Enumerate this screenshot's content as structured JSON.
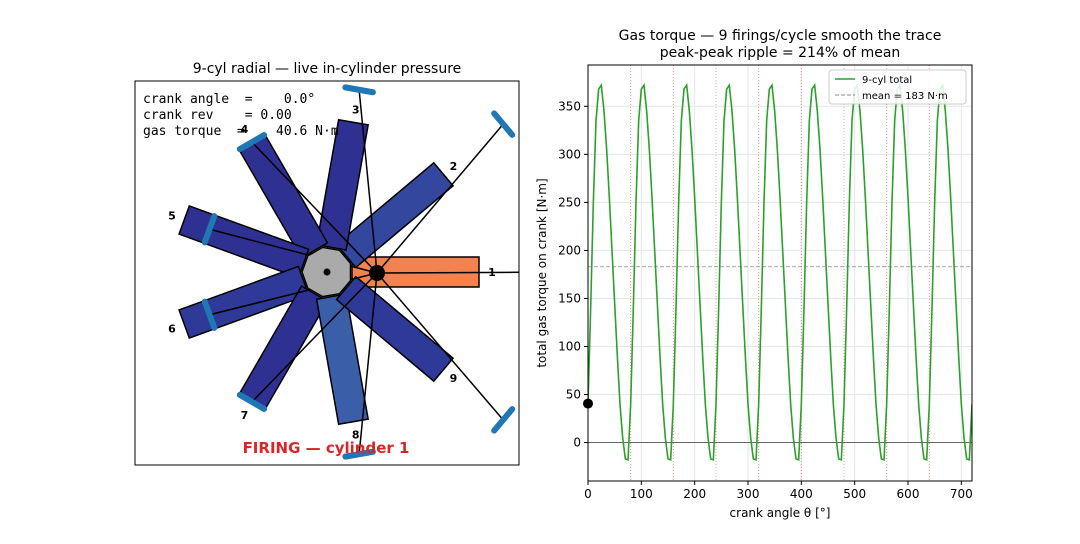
{
  "engine_panel": {
    "title": "9-cyl radial — live in-cylinder pressure",
    "readout": [
      "crank angle  =    0.0°",
      "crank rev    = 0.00",
      "gas torque  =    40.6 N·m"
    ],
    "cylinders": [
      {
        "label": "1",
        "color": "#f4824f"
      },
      {
        "label": "2",
        "color": "#33479e"
      },
      {
        "label": "3",
        "color": "#2e3192"
      },
      {
        "label": "4",
        "color": "#2e3192"
      },
      {
        "label": "5",
        "color": "#2e3192"
      },
      {
        "label": "6",
        "color": "#2f3a98"
      },
      {
        "label": "7",
        "color": "#2e3192"
      },
      {
        "label": "8",
        "color": "#3b5ea8"
      },
      {
        "label": "9",
        "color": "#2f3a98"
      }
    ],
    "status": "FIRING — cylinder 1"
  },
  "chart_data": {
    "type": "line",
    "title": "Gas torque — 9 firings/cycle smooth the trace",
    "subtitle": "peak-peak ripple = 214% of mean",
    "x_label": "crank angle θ [°]",
    "y_label": "total gas torque on crank [N·m]",
    "x": [
      0,
      5,
      10,
      15,
      20,
      25,
      30,
      35,
      40,
      45,
      50,
      55,
      60,
      65,
      70,
      75,
      80,
      85,
      90,
      95,
      100,
      105,
      110,
      115,
      120,
      125,
      130,
      135,
      140,
      145,
      150,
      155,
      160,
      165,
      170,
      175,
      180,
      185,
      190,
      195,
      200,
      205,
      210,
      215,
      220,
      225,
      230,
      235,
      240,
      245,
      250,
      255,
      260,
      265,
      270,
      275,
      280,
      285,
      290,
      295,
      300,
      305,
      310,
      315,
      320,
      325,
      330,
      335,
      340,
      345,
      350,
      355,
      360,
      365,
      370,
      375,
      380,
      385,
      390,
      395,
      400,
      405,
      410,
      415,
      420,
      425,
      430,
      435,
      440,
      445,
      450,
      455,
      460,
      465,
      470,
      475,
      480,
      485,
      490,
      495,
      500,
      505,
      510,
      515,
      520,
      525,
      530,
      535,
      540,
      545,
      550,
      555,
      560,
      565,
      570,
      575,
      580,
      585,
      590,
      595,
      600,
      605,
      610,
      615,
      620,
      625,
      630,
      635,
      640,
      645,
      650,
      655,
      660,
      665,
      670,
      675,
      680,
      685,
      690,
      695,
      700,
      705,
      710,
      715,
      720
    ],
    "series": [
      {
        "name": "9-cyl total",
        "color": "#2ca02c",
        "values": [
          40,
          140,
          250,
          335,
          368,
          372,
          345,
          305,
          255,
          200,
          145,
          90,
          40,
          5,
          -17,
          -18,
          40,
          140,
          250,
          335,
          368,
          372,
          345,
          305,
          255,
          200,
          145,
          90,
          40,
          5,
          -17,
          -18,
          40,
          140,
          250,
          335,
          368,
          372,
          345,
          305,
          255,
          200,
          145,
          90,
          40,
          5,
          -17,
          -18,
          40,
          140,
          250,
          335,
          368,
          372,
          345,
          305,
          255,
          200,
          145,
          90,
          40,
          5,
          -17,
          -18,
          40,
          140,
          250,
          335,
          368,
          372,
          345,
          305,
          255,
          200,
          145,
          90,
          40,
          5,
          -17,
          -18,
          40,
          140,
          250,
          335,
          368,
          372,
          345,
          305,
          255,
          200,
          145,
          90,
          40,
          5,
          -17,
          -18,
          40,
          140,
          250,
          335,
          368,
          372,
          345,
          305,
          255,
          200,
          145,
          90,
          40,
          5,
          -17,
          -18,
          40,
          140,
          250,
          335,
          368,
          372,
          345,
          305,
          255,
          200,
          145,
          90,
          40,
          5,
          -17,
          -18,
          40,
          140,
          250,
          335,
          368,
          372,
          345,
          305,
          255,
          200,
          145,
          90,
          40,
          5,
          -17,
          -18,
          40
        ]
      }
    ],
    "mean": 183,
    "mean_label": "mean = 183 N·m",
    "firing_angles": [
      80,
      160,
      240,
      320,
      400,
      480,
      560,
      640
    ],
    "marker": {
      "x": 0,
      "y": 40.6
    },
    "xlim": [
      0,
      720
    ],
    "ylim": [
      -40,
      393
    ],
    "xticks": [
      0,
      100,
      200,
      300,
      400,
      500,
      600,
      700
    ],
    "yticks": [
      0,
      50,
      100,
      150,
      200,
      250,
      300,
      350
    ],
    "grid": true,
    "legend": "upper right"
  }
}
